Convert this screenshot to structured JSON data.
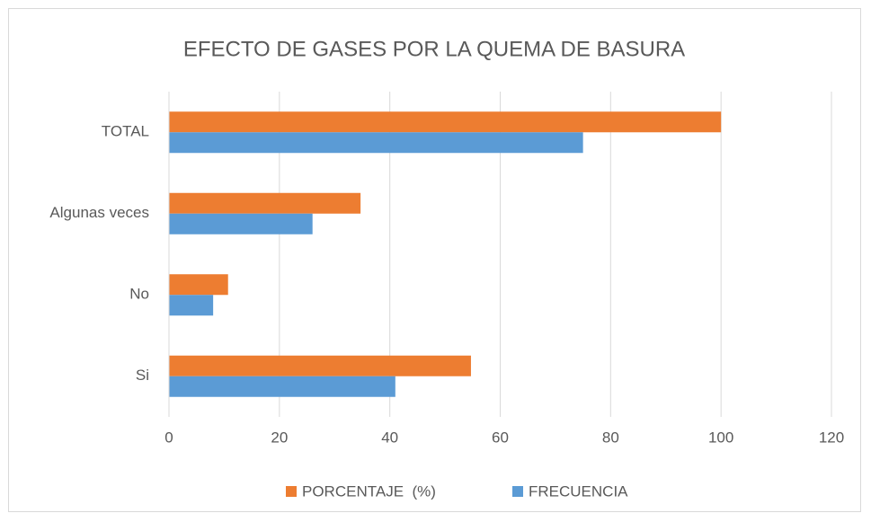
{
  "chart_data": {
    "type": "hbar",
    "title": "EFECTO DE GASES POR LA QUEMA DE BASURA",
    "categories": [
      "Si",
      "No",
      "Algunas veces",
      "TOTAL"
    ],
    "series": [
      {
        "name": "PORCENTAJE  (%)",
        "color": "#ed7d31",
        "values": [
          54.7,
          10.7,
          34.7,
          100
        ]
      },
      {
        "name": "FRECUENCIA",
        "color": "#5b9bd5",
        "values": [
          41,
          8,
          26,
          75
        ]
      }
    ],
    "xlim": [
      0,
      120
    ],
    "xticks": [
      0,
      20,
      40,
      60,
      80,
      100,
      120
    ],
    "grid": true,
    "legend": "bottom"
  }
}
